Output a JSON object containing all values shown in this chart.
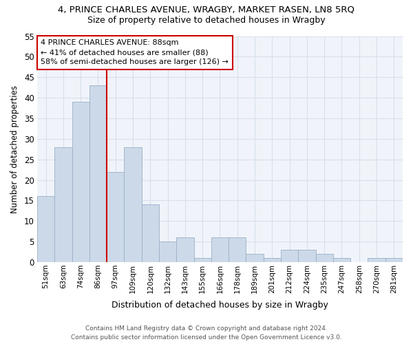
{
  "title": "4, PRINCE CHARLES AVENUE, WRAGBY, MARKET RASEN, LN8 5RQ",
  "subtitle": "Size of property relative to detached houses in Wragby",
  "xlabel": "Distribution of detached houses by size in Wragby",
  "ylabel": "Number of detached properties",
  "bar_labels": [
    "51sqm",
    "63sqm",
    "74sqm",
    "86sqm",
    "97sqm",
    "109sqm",
    "120sqm",
    "132sqm",
    "143sqm",
    "155sqm",
    "166sqm",
    "178sqm",
    "189sqm",
    "201sqm",
    "212sqm",
    "224sqm",
    "235sqm",
    "247sqm",
    "258sqm",
    "270sqm",
    "281sqm"
  ],
  "bar_values": [
    16,
    28,
    39,
    43,
    22,
    28,
    14,
    5,
    6,
    1,
    6,
    6,
    2,
    1,
    3,
    3,
    2,
    1,
    0,
    1,
    1
  ],
  "bar_color": "#ccd9e8",
  "bar_edgecolor": "#9ab0c8",
  "vline_x": 3.5,
  "vline_color": "#cc0000",
  "annotation_text": "4 PRINCE CHARLES AVENUE: 88sqm\n← 41% of detached houses are smaller (88)\n58% of semi-detached houses are larger (126) →",
  "annotation_box_edgecolor": "#cc0000",
  "ylim": [
    0,
    55
  ],
  "yticks": [
    0,
    5,
    10,
    15,
    20,
    25,
    30,
    35,
    40,
    45,
    50,
    55
  ],
  "footer_line1": "Contains HM Land Registry data © Crown copyright and database right 2024.",
  "footer_line2": "Contains public sector information licensed under the Open Government Licence v3.0.",
  "bg_color": "#ffffff",
  "plot_bg_color": "#f0f4fa",
  "grid_color": "#d8e0ea"
}
